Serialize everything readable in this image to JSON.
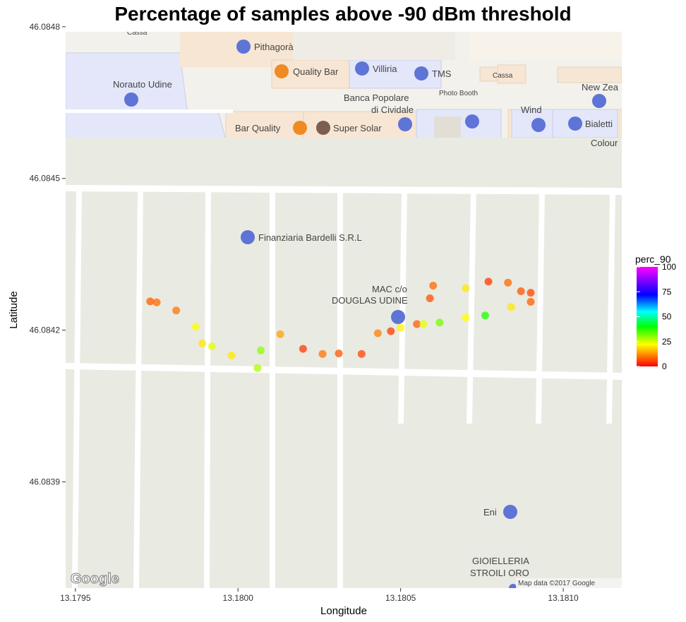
{
  "chart_data": {
    "type": "scatter",
    "title": "Percentage of samples above -90 dBm threshold",
    "xlabel": "Longitude",
    "ylabel": "Latitude",
    "xlim": [
      13.17947,
      13.18118
    ],
    "ylim": [
      46.08371,
      46.08481
    ],
    "x_ticks": [
      {
        "value": 13.1795,
        "label": "13.1795"
      },
      {
        "value": 13.18,
        "label": "13.1800"
      },
      {
        "value": 13.1805,
        "label": "13.1805"
      },
      {
        "value": 13.181,
        "label": "13.1810"
      }
    ],
    "y_ticks": [
      {
        "value": 46.08392,
        "label": "46.0839"
      },
      {
        "value": 46.08422,
        "label": "46.0842"
      },
      {
        "value": 46.08452,
        "label": "46.0845"
      },
      {
        "value": 46.08482,
        "label": "46.0848"
      }
    ],
    "legend": {
      "title": "perc_90",
      "ticks": [
        0,
        25,
        50,
        75,
        100
      ],
      "position": "right"
    },
    "grid": false,
    "points": [
      {
        "x": 13.17973,
        "y": 46.084277,
        "value": 8
      },
      {
        "x": 13.17975,
        "y": 46.084275,
        "value": 9
      },
      {
        "x": 13.17981,
        "y": 46.084259,
        "value": 10
      },
      {
        "x": 13.17987,
        "y": 46.084227,
        "value": 22
      },
      {
        "x": 13.17989,
        "y": 46.084194,
        "value": 20
      },
      {
        "x": 13.17992,
        "y": 46.084188,
        "value": 24
      },
      {
        "x": 13.17998,
        "y": 46.08417,
        "value": 20
      },
      {
        "x": 13.18006,
        "y": 46.084145,
        "value": 28
      },
      {
        "x": 13.18007,
        "y": 46.08418,
        "value": 30
      },
      {
        "x": 13.18013,
        "y": 46.084212,
        "value": 14
      },
      {
        "x": 13.1802,
        "y": 46.084183,
        "value": 5
      },
      {
        "x": 13.18026,
        "y": 46.084173,
        "value": 10
      },
      {
        "x": 13.18031,
        "y": 46.084174,
        "value": 7
      },
      {
        "x": 13.18038,
        "y": 46.084173,
        "value": 6
      },
      {
        "x": 13.18043,
        "y": 46.084214,
        "value": 11
      },
      {
        "x": 13.18047,
        "y": 46.084218,
        "value": 5
      },
      {
        "x": 13.1805,
        "y": 46.084225,
        "value": 21
      },
      {
        "x": 13.18055,
        "y": 46.084232,
        "value": 8
      },
      {
        "x": 13.18057,
        "y": 46.084232,
        "value": 24
      },
      {
        "x": 13.18059,
        "y": 46.084283,
        "value": 7
      },
      {
        "x": 13.1806,
        "y": 46.084308,
        "value": 9
      },
      {
        "x": 13.18062,
        "y": 46.084235,
        "value": 32
      },
      {
        "x": 13.1807,
        "y": 46.084303,
        "value": 20
      },
      {
        "x": 13.1807,
        "y": 46.084245,
        "value": 22
      },
      {
        "x": 13.18076,
        "y": 46.084249,
        "value": 38
      },
      {
        "x": 13.18077,
        "y": 46.084316,
        "value": 5
      },
      {
        "x": 13.18083,
        "y": 46.084314,
        "value": 9
      },
      {
        "x": 13.18084,
        "y": 46.084266,
        "value": 20
      },
      {
        "x": 13.18087,
        "y": 46.084297,
        "value": 7
      },
      {
        "x": 13.1809,
        "y": 46.084294,
        "value": 6
      },
      {
        "x": 13.1809,
        "y": 46.084276,
        "value": 8
      }
    ]
  },
  "map": {
    "labels": [
      "Pithagorà",
      "Norauto Udine",
      "Quality Bar",
      "Villiria",
      "TMS",
      "Cassa",
      "Cassa",
      "Banca Popolare",
      "di Cividale",
      "Photo Booth",
      "New Zea",
      "Wind",
      "Bar Quality",
      "Super Solar",
      "Bialetti",
      "Colour",
      "Finanziaria Bardelli S.R.L",
      "MAC c/o",
      "DOUGLAS UDINE",
      "Eni",
      "GIOIELLERIA",
      "STROILI ORO"
    ],
    "attribution": "Map data ©2017 Google",
    "logo": "Google"
  },
  "colors": {
    "map_background": "#e9eae2",
    "road": "#ffffff",
    "building_beige": "#f7e6d3",
    "building_blue": "#e3e7f9",
    "poi_blue": "#5e74d6",
    "poi_orange": "#f08a23",
    "poi_brown": "#7b6052"
  }
}
